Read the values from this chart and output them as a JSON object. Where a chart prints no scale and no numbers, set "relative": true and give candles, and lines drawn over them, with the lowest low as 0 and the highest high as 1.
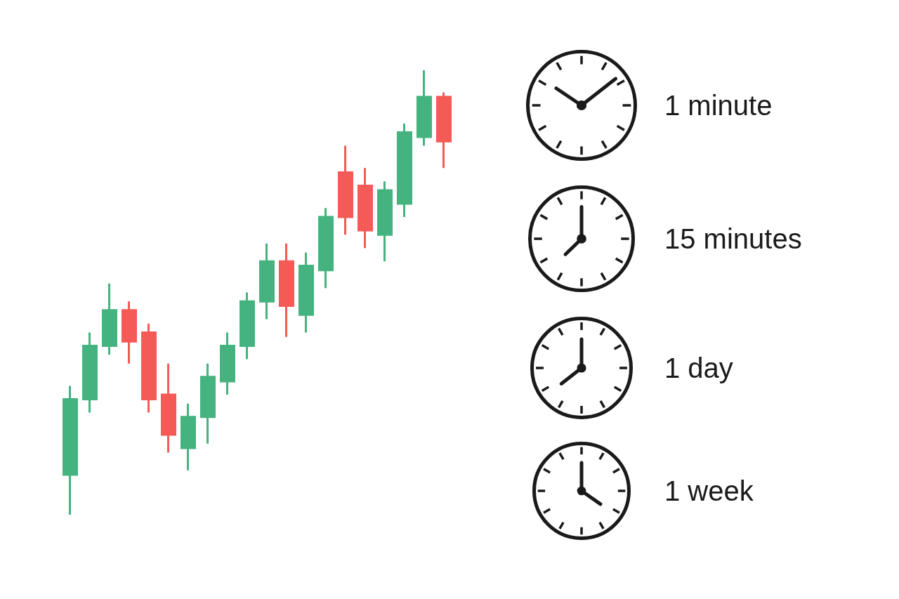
{
  "chart_data": [
    {
      "type": "candlestick",
      "relative": true,
      "categories": [
        null,
        null,
        null,
        null,
        null,
        null,
        null,
        null,
        null,
        null,
        null,
        null,
        null,
        null,
        null,
        null,
        null,
        null,
        null,
        null
      ],
      "ohlc": [
        [
          0.09,
          0.29,
          0,
          0.26
        ],
        [
          0.26,
          0.41,
          0.23,
          0.38
        ],
        [
          0.38,
          0.52,
          0.36,
          0.46
        ],
        [
          0.46,
          0.48,
          0.34,
          0.39
        ],
        [
          0.41,
          0.43,
          0.23,
          0.26
        ],
        [
          0.27,
          0.34,
          0.14,
          0.18
        ],
        [
          0.15,
          0.25,
          0.1,
          0.22
        ],
        [
          0.22,
          0.34,
          0.16,
          0.31
        ],
        [
          0.3,
          0.41,
          0.27,
          0.38
        ],
        [
          0.38,
          0.5,
          0.35,
          0.48
        ],
        [
          0.48,
          0.61,
          0.44,
          0.57
        ],
        [
          0.57,
          0.61,
          0.4,
          0.47
        ],
        [
          0.45,
          0.59,
          0.41,
          0.56
        ],
        [
          0.55,
          0.69,
          0.51,
          0.67
        ],
        [
          0.77,
          0.83,
          0.63,
          0.67
        ],
        [
          0.74,
          0.78,
          0.6,
          0.64
        ],
        [
          0.63,
          0.75,
          0.57,
          0.73
        ],
        [
          0.7,
          0.88,
          0.67,
          0.86
        ],
        [
          0.85,
          1,
          0.83,
          0.94
        ],
        [
          0.94,
          0.95,
          0.78,
          0.84
        ]
      ],
      "colors": [
        "#45b37f",
        "#45b37f",
        "#45b37f",
        "#f45a56",
        "#f45a56",
        "#f45a56",
        "#45b37f",
        "#45b37f",
        "#45b37f",
        "#45b37f",
        "#45b37f",
        "#f45a56",
        "#45b37f",
        "#45b37f",
        "#f45a56",
        "#f45a56",
        "#45b37f",
        "#45b37f",
        "#45b37f",
        "#f45a56"
      ]
    },
    {
      "type": "other",
      "annotations": [
        "1 minute",
        "15 minutes",
        "1 day",
        "1 week"
      ]
    }
  ]
}
